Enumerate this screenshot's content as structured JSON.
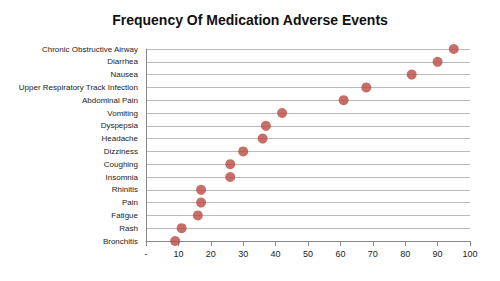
{
  "chart_data": {
    "type": "scatter",
    "title": "Frequency Of Medication Adverse Events",
    "orientation": "horizontal",
    "categories": [
      "Chronic Obstructive Airway",
      "Diarrhea",
      "Nausea",
      "Upper Respiratory Track Infection",
      "Abdominal Pain",
      "Vomiting",
      "Dyspepsia",
      "Headache",
      "Dizziness",
      "Coughing",
      "Insomnia",
      "Rhinitis",
      "Pain",
      "Fatigue",
      "Rash",
      "Bronchitis"
    ],
    "values": [
      95,
      90,
      82,
      68,
      61,
      42,
      37,
      36,
      30,
      26,
      26,
      17,
      17,
      16,
      11,
      9
    ],
    "color": "#b94a44",
    "xlim": [
      0,
      100
    ],
    "xticks": [
      {
        "value": 0,
        "label": "-"
      },
      10,
      20,
      30,
      40,
      50,
      60,
      70,
      80,
      90,
      100
    ],
    "grid": true
  }
}
